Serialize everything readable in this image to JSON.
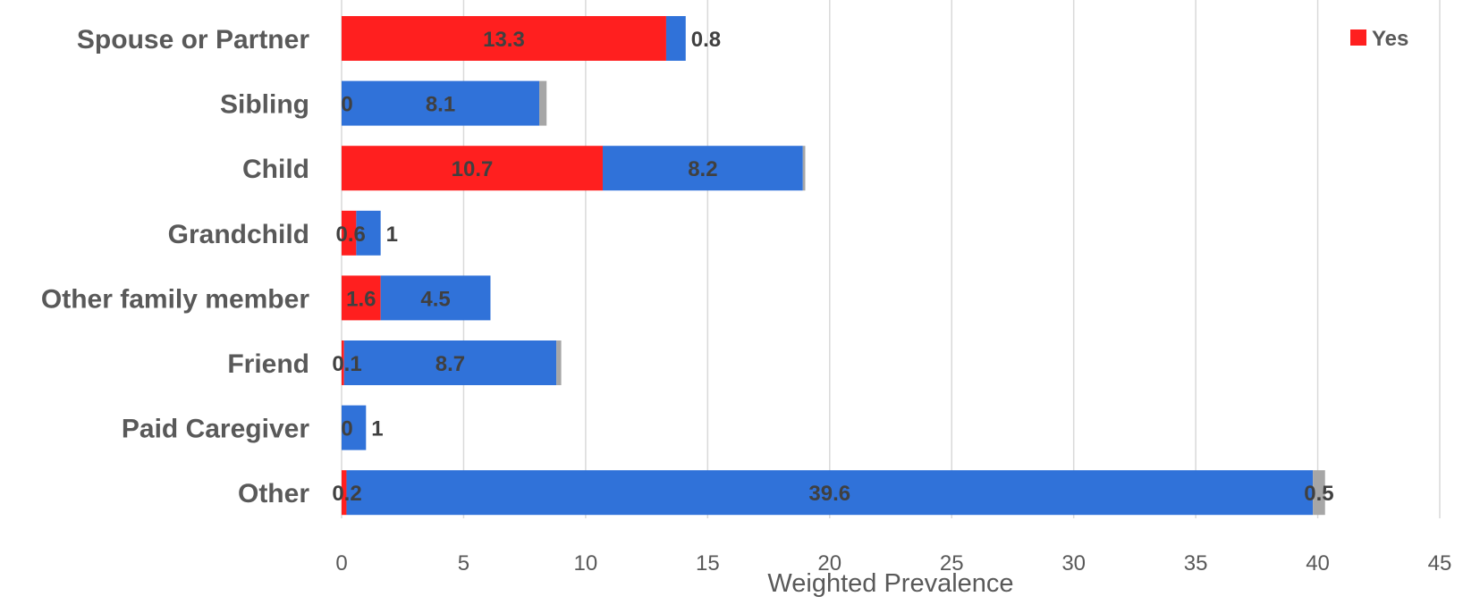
{
  "chart_data": {
    "type": "bar",
    "orientation": "horizontal",
    "stacked": true,
    "categories": [
      "Spouse or Partner",
      "Sibling",
      "Child",
      "Grandchild",
      "Other family member",
      "Friend",
      "Paid Caregiver",
      "Other"
    ],
    "series": [
      {
        "name": "Yes",
        "color": "#ff1f1f",
        "values": [
          13.3,
          0,
          10.7,
          0.6,
          1.6,
          0.1,
          0,
          0.2
        ],
        "labels": [
          "13.3",
          "0",
          "10.7",
          "0.6",
          "1.6",
          "0.1",
          "0",
          "0.2"
        ]
      },
      {
        "color": "#3072d9",
        "values": [
          0.8,
          8.1,
          8.2,
          1,
          4.5,
          8.7,
          1,
          39.6
        ],
        "labels": [
          "0.8",
          "8.1",
          "8.2",
          "1",
          "4.5",
          "8.7",
          "1",
          "39.6"
        ]
      },
      {
        "color": "#a6a6a6",
        "values": [
          0,
          0.3,
          0.1,
          0,
          0,
          0.2,
          0,
          0.5
        ],
        "labels": [
          "",
          "",
          "",
          "",
          "",
          "",
          "",
          "0.5"
        ]
      }
    ],
    "xlabel": "Weighted Prevalence",
    "xlim": [
      0,
      45
    ],
    "xticks": [
      0,
      5,
      10,
      15,
      20,
      25,
      30,
      35,
      40,
      45
    ],
    "grid": "vertical",
    "legend": {
      "position": "top-right",
      "entries": [
        "Yes"
      ]
    }
  }
}
